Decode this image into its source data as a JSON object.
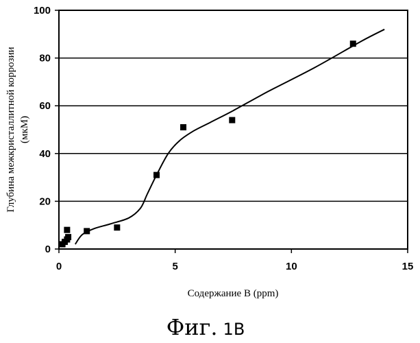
{
  "chart_data": {
    "type": "scatter",
    "title": "",
    "xlabel": "Содержание В (ppm)",
    "ylabel_line1": "Глубина межкристаллитной коррозии",
    "ylabel_line2": "(мкМ)",
    "xlim": [
      0,
      15
    ],
    "ylim": [
      0,
      100
    ],
    "x_ticks": [
      0,
      5,
      10,
      15
    ],
    "y_ticks": [
      0,
      20,
      40,
      60,
      80,
      100
    ],
    "grid": "horizontal",
    "legend": "none",
    "points": [
      {
        "x": 0.15,
        "y": 2
      },
      {
        "x": 0.25,
        "y": 3
      },
      {
        "x": 0.35,
        "y": 4
      },
      {
        "x": 0.4,
        "y": 5
      },
      {
        "x": 0.35,
        "y": 8
      },
      {
        "x": 1.2,
        "y": 7.5
      },
      {
        "x": 2.5,
        "y": 9
      },
      {
        "x": 4.2,
        "y": 31
      },
      {
        "x": 5.35,
        "y": 51
      },
      {
        "x": 7.45,
        "y": 54
      },
      {
        "x": 12.65,
        "y": 86
      }
    ],
    "fit_curve": [
      {
        "x": 0.7,
        "y": 2
      },
      {
        "x": 1.0,
        "y": 6
      },
      {
        "x": 1.5,
        "y": 8.5
      },
      {
        "x": 2.2,
        "y": 10.5
      },
      {
        "x": 3.0,
        "y": 13
      },
      {
        "x": 3.5,
        "y": 17
      },
      {
        "x": 3.8,
        "y": 23
      },
      {
        "x": 4.2,
        "y": 31
      },
      {
        "x": 4.7,
        "y": 40
      },
      {
        "x": 5.2,
        "y": 45.5
      },
      {
        "x": 5.8,
        "y": 49.5
      },
      {
        "x": 6.5,
        "y": 53
      },
      {
        "x": 7.5,
        "y": 58
      },
      {
        "x": 9.0,
        "y": 66
      },
      {
        "x": 11.0,
        "y": 76
      },
      {
        "x": 13.0,
        "y": 87
      },
      {
        "x": 14.0,
        "y": 92
      }
    ],
    "colors": {
      "marker": "#000000",
      "line": "#000000",
      "grid": "#000000"
    }
  },
  "caption": {
    "main": "Фиг.",
    "number": "1В"
  }
}
